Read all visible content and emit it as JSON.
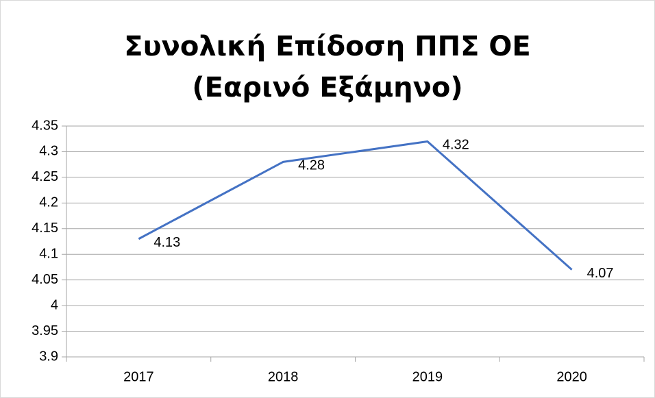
{
  "chart_data": {
    "type": "line",
    "title": "Συνολική Επίδοση ΠΠΣ ΟΕ (Εαρινό Εξάμηνο)",
    "categories": [
      "2017",
      "2018",
      "2019",
      "2020"
    ],
    "series": [
      {
        "name": "Συνολική Επίδοση",
        "color": "#4472c4",
        "values": [
          4.13,
          4.28,
          4.32,
          4.07
        ]
      }
    ],
    "ylim": [
      3.9,
      4.35
    ],
    "yticks": [
      3.9,
      3.95,
      4,
      4.05,
      4.1,
      4.15,
      4.2,
      4.25,
      4.3,
      4.35
    ],
    "grid": true
  }
}
